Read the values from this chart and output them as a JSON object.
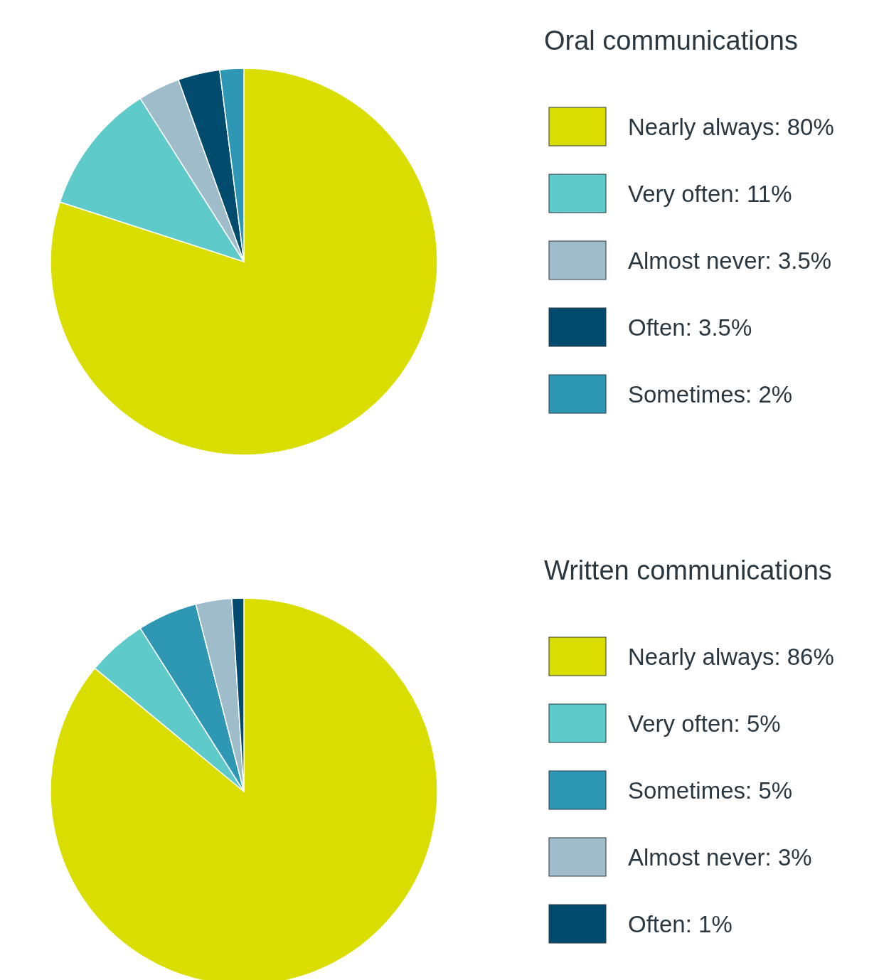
{
  "chart_data": [
    {
      "type": "pie",
      "legend_title": "Oral communications",
      "legend": "right",
      "categories": [
        "Nearly always: 80%",
        "Very often: 11%",
        "Almost never: 3.5%",
        "Often: 3.5%",
        "Sometimes: 2%"
      ],
      "values": [
        80,
        11,
        3.5,
        3.5,
        2
      ],
      "colors": [
        "#dade00",
        "#5ecbca",
        "#9fbccb",
        "#004b6e",
        "#2e97b4"
      ]
    },
    {
      "type": "pie",
      "legend_title": "Written communications",
      "legend": "right",
      "categories": [
        "Nearly always: 86%",
        "Very often: 5%",
        "Sometimes: 5%",
        "Almost never: 3%",
        "Often: 1%"
      ],
      "values": [
        86,
        5,
        5,
        3,
        1
      ],
      "colors": [
        "#dade00",
        "#5ecbca",
        "#2e97b4",
        "#9fbccb",
        "#004b6e"
      ]
    }
  ]
}
